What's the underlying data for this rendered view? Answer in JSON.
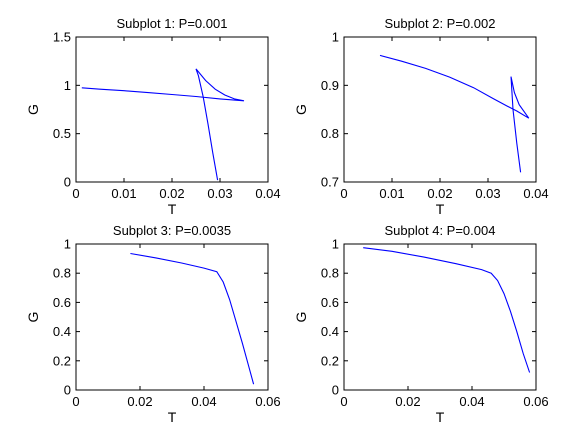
{
  "chart_data": [
    {
      "type": "line",
      "title": "Subplot 1: P=0.001",
      "xlabel": "T",
      "ylabel": "G",
      "xlim": [
        0,
        0.04
      ],
      "ylim": [
        0,
        1.5
      ],
      "xticks": [
        "0",
        "0.01",
        "0.02",
        "0.03",
        "0.04"
      ],
      "xtick_values": [
        0,
        0.01,
        0.02,
        0.03,
        0.04
      ],
      "yticks": [
        "0",
        "0.5",
        "1",
        "1.5"
      ],
      "ytick_values": [
        0,
        0.5,
        1,
        1.5
      ],
      "grid": false,
      "series": [
        {
          "color": "#0000ff",
          "x": [
            0.0295,
            0.0285,
            0.0275,
            0.0265,
            0.0255,
            0.025,
            0.027,
            0.029,
            0.031,
            0.033,
            0.035,
            0.03,
            0.025,
            0.02,
            0.015,
            0.01,
            0.005,
            0.0012
          ],
          "y": [
            0.02,
            0.3,
            0.6,
            0.88,
            1.1,
            1.17,
            1.05,
            0.96,
            0.9,
            0.86,
            0.84,
            0.86,
            0.885,
            0.905,
            0.925,
            0.945,
            0.96,
            0.975
          ]
        }
      ]
    },
    {
      "type": "line",
      "title": "Subplot 2: P=0.002",
      "xlabel": "T",
      "ylabel": "G",
      "xlim": [
        0,
        0.04
      ],
      "ylim": [
        0.7,
        1
      ],
      "xticks": [
        "0",
        "0.01",
        "0.02",
        "0.03",
        "0.04"
      ],
      "xtick_values": [
        0,
        0.01,
        0.02,
        0.03,
        0.04
      ],
      "yticks": [
        "0.7",
        "0.8",
        "0.9",
        "1"
      ],
      "ytick_values": [
        0.7,
        0.8,
        0.9,
        1
      ],
      "grid": false,
      "series": [
        {
          "color": "#0000ff",
          "x": [
            0.0075,
            0.012,
            0.017,
            0.022,
            0.027,
            0.031,
            0.034,
            0.036,
            0.0385,
            0.0365,
            0.0355,
            0.0348,
            0.0352,
            0.036,
            0.0368
          ],
          "y": [
            0.962,
            0.95,
            0.935,
            0.917,
            0.895,
            0.873,
            0.857,
            0.847,
            0.832,
            0.86,
            0.885,
            0.918,
            0.85,
            0.78,
            0.72
          ]
        }
      ]
    },
    {
      "type": "line",
      "title": "Subplot 3: P=0.0035",
      "xlabel": "T",
      "ylabel": "G",
      "xlim": [
        0,
        0.06
      ],
      "ylim": [
        0,
        1
      ],
      "xticks": [
        "0",
        "0.02",
        "0.04",
        "0.06"
      ],
      "xtick_values": [
        0,
        0.02,
        0.04,
        0.06
      ],
      "yticks": [
        "0",
        "0.2",
        "0.4",
        "0.6",
        "0.8",
        "1"
      ],
      "ytick_values": [
        0,
        0.2,
        0.4,
        0.6,
        0.8,
        1
      ],
      "grid": false,
      "series": [
        {
          "color": "#0000ff",
          "x": [
            0.017,
            0.025,
            0.033,
            0.04,
            0.044,
            0.046,
            0.048,
            0.05,
            0.052,
            0.054,
            0.0555
          ],
          "y": [
            0.935,
            0.905,
            0.87,
            0.835,
            0.81,
            0.74,
            0.62,
            0.47,
            0.32,
            0.16,
            0.04
          ]
        }
      ]
    },
    {
      "type": "line",
      "title": "Subplot 4: P=0.004",
      "xlabel": "T",
      "ylabel": "G",
      "xlim": [
        0,
        0.06
      ],
      "ylim": [
        0,
        1
      ],
      "xticks": [
        "0",
        "0.02",
        "0.04",
        "0.06"
      ],
      "xtick_values": [
        0,
        0.02,
        0.04,
        0.06
      ],
      "yticks": [
        "0",
        "0.2",
        "0.4",
        "0.6",
        "0.8",
        "1"
      ],
      "ytick_values": [
        0,
        0.2,
        0.4,
        0.6,
        0.8,
        1
      ],
      "grid": false,
      "series": [
        {
          "color": "#0000ff",
          "x": [
            0.006,
            0.015,
            0.025,
            0.035,
            0.043,
            0.046,
            0.048,
            0.05,
            0.052,
            0.054,
            0.056,
            0.058
          ],
          "y": [
            0.975,
            0.95,
            0.91,
            0.865,
            0.825,
            0.8,
            0.75,
            0.66,
            0.54,
            0.4,
            0.25,
            0.12
          ]
        }
      ]
    }
  ]
}
